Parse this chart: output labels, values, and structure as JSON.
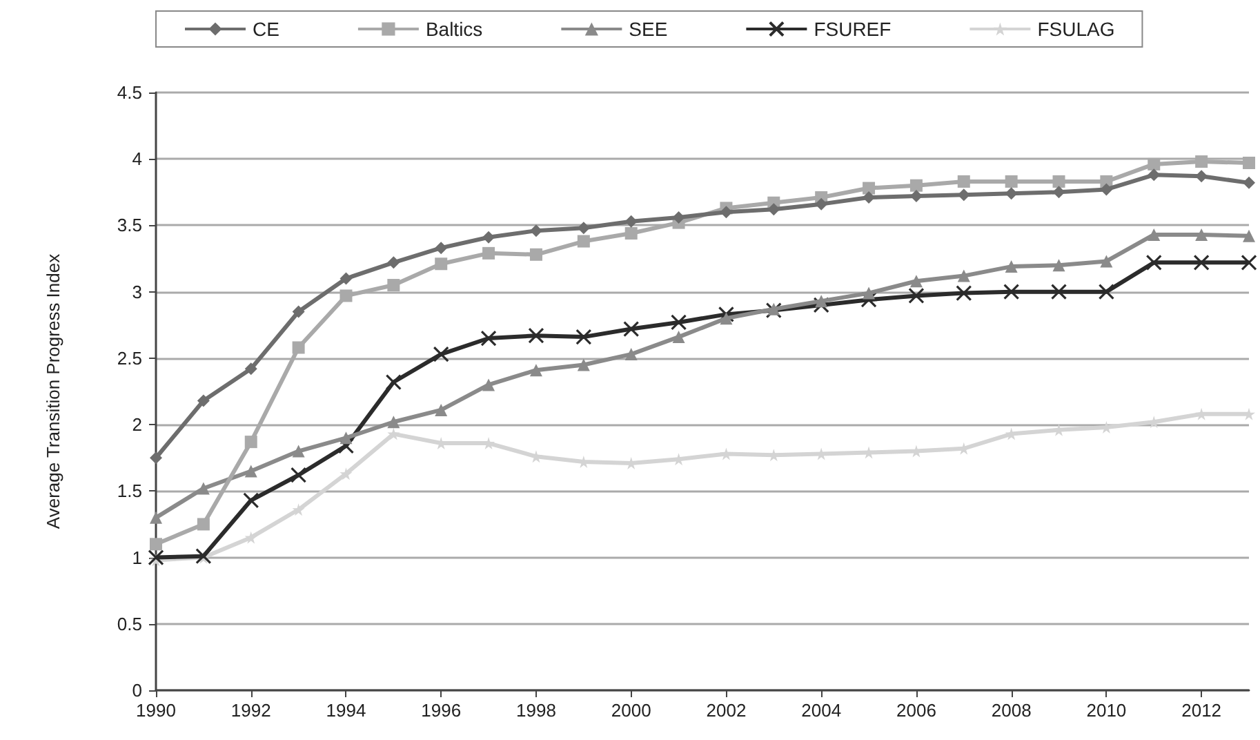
{
  "chart_data": {
    "type": "line",
    "ylabel": "Average Transition Progress Index",
    "x": [
      1990,
      1991,
      1992,
      1993,
      1994,
      1995,
      1996,
      1997,
      1998,
      1999,
      2000,
      2001,
      2002,
      2003,
      2004,
      2005,
      2006,
      2007,
      2008,
      2009,
      2010,
      2011,
      2012,
      2013
    ],
    "xlim": [
      1990,
      2013
    ],
    "xticks": [
      1990,
      1992,
      1994,
      1996,
      1998,
      2000,
      2002,
      2004,
      2006,
      2008,
      2010,
      2012
    ],
    "ylim": [
      0,
      4.5
    ],
    "yticks": [
      0,
      0.5,
      1,
      1.5,
      2,
      2.5,
      3,
      3.5,
      4,
      4.5
    ],
    "grid": "y",
    "legend": "top",
    "line_style": "solid",
    "series": [
      {
        "name": "CE",
        "color": "#6d6d6d",
        "marker": "diamond",
        "values": [
          1.75,
          2.18,
          2.42,
          2.85,
          3.1,
          3.22,
          3.33,
          3.41,
          3.46,
          3.48,
          3.53,
          3.56,
          3.6,
          3.62,
          3.66,
          3.71,
          3.72,
          3.73,
          3.74,
          3.75,
          3.77,
          3.88,
          3.87,
          3.82
        ]
      },
      {
        "name": "Baltics",
        "color": "#a9a9a9",
        "marker": "square",
        "values": [
          1.1,
          1.25,
          1.87,
          2.58,
          2.97,
          3.05,
          3.21,
          3.29,
          3.28,
          3.38,
          3.44,
          3.52,
          3.63,
          3.67,
          3.71,
          3.78,
          3.8,
          3.83,
          3.83,
          3.83,
          3.83,
          3.96,
          3.98,
          3.97
        ]
      },
      {
        "name": "SEE",
        "color": "#8a8a8a",
        "marker": "triangle",
        "values": [
          1.3,
          1.52,
          1.65,
          1.8,
          1.9,
          2.02,
          2.11,
          2.3,
          2.41,
          2.45,
          2.53,
          2.66,
          2.8,
          2.87,
          2.93,
          2.99,
          3.08,
          3.12,
          3.19,
          3.2,
          3.23,
          3.43,
          3.43,
          3.42
        ]
      },
      {
        "name": "FSUREF",
        "color": "#2b2b2b",
        "marker": "cross",
        "values": [
          1.0,
          1.01,
          1.43,
          1.62,
          1.84,
          2.32,
          2.53,
          2.65,
          2.67,
          2.66,
          2.72,
          2.77,
          2.83,
          2.86,
          2.9,
          2.94,
          2.97,
          2.99,
          3.0,
          3.0,
          3.0,
          3.22,
          3.22,
          3.22
        ]
      },
      {
        "name": "FSULAG",
        "color": "#d4d4d4",
        "marker": "star",
        "values": [
          0.98,
          1.0,
          1.15,
          1.36,
          1.63,
          1.93,
          1.86,
          1.86,
          1.76,
          1.72,
          1.71,
          1.74,
          1.78,
          1.77,
          1.78,
          1.79,
          1.8,
          1.82,
          1.93,
          1.96,
          1.98,
          2.02,
          2.08,
          2.08
        ]
      }
    ]
  }
}
